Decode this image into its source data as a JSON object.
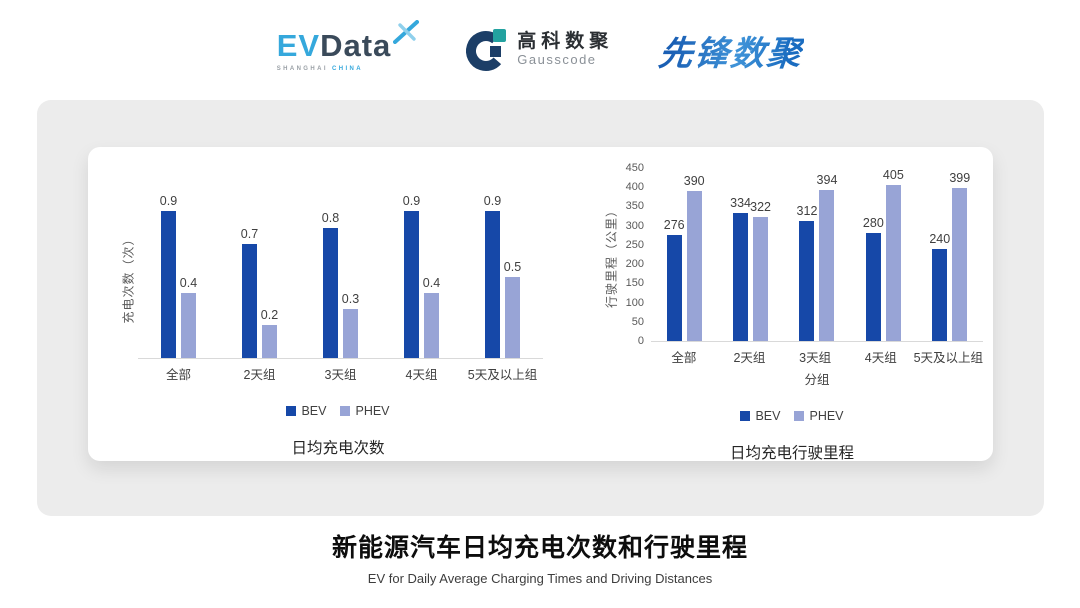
{
  "header": {
    "evdata": {
      "ev": "EV",
      "data": "Data",
      "sub_left": "SHANGHAI",
      "sub_right": "CHINA"
    },
    "gausscode": {
      "cn": "高科数聚",
      "en": "Gausscode"
    },
    "pioneer": {
      "text": "先锋数聚"
    }
  },
  "colors": {
    "bev": "#1648a8",
    "phev": "#98a4d6",
    "axis_line": "#d9d9d9",
    "panel_bg": "#ececec",
    "evdata_blue": "#35a8dc",
    "evdata_dark": "#3a4a5a",
    "gauss_navy": "#1c3e67",
    "gauss_teal": "#23a2a0",
    "pioneer_blue": "#2472c8"
  },
  "chart_data": [
    {
      "type": "bar",
      "title": "日均充电次数",
      "ylabel": "充电次数（次）",
      "xlabel": "",
      "categories": [
        "全部",
        "2天组",
        "3天组",
        "4天组",
        "5天及以上组"
      ],
      "series": [
        {
          "name": "BEV",
          "color": "#1648a8",
          "values": [
            0.9,
            0.7,
            0.8,
            0.9,
            0.9
          ]
        },
        {
          "name": "PHEV",
          "color": "#98a4d6",
          "values": [
            0.4,
            0.2,
            0.3,
            0.4,
            0.5
          ]
        }
      ],
      "ylim": [
        0,
        1.0
      ],
      "yticks": [],
      "grid": false,
      "legend_position": "bottom",
      "data_labels": true
    },
    {
      "type": "bar",
      "title": "日均充电行驶里程",
      "ylabel": "行驶里程（公里）",
      "xlabel": "分组",
      "categories": [
        "全部",
        "2天组",
        "3天组",
        "4天组",
        "5天及以上组"
      ],
      "series": [
        {
          "name": "BEV",
          "color": "#1648a8",
          "values": [
            276,
            334,
            312,
            280,
            240
          ]
        },
        {
          "name": "PHEV",
          "color": "#98a4d6",
          "values": [
            390,
            322,
            394,
            405,
            399
          ]
        }
      ],
      "ylim": [
        0,
        450
      ],
      "yticks": [
        0,
        50,
        100,
        150,
        200,
        250,
        300,
        350,
        400,
        450
      ],
      "grid": false,
      "legend_position": "bottom",
      "data_labels": true
    }
  ],
  "footer": {
    "title": "新能源汽车日均充电次数和行驶里程",
    "subtitle": "EV for Daily Average Charging Times and Driving Distances"
  }
}
